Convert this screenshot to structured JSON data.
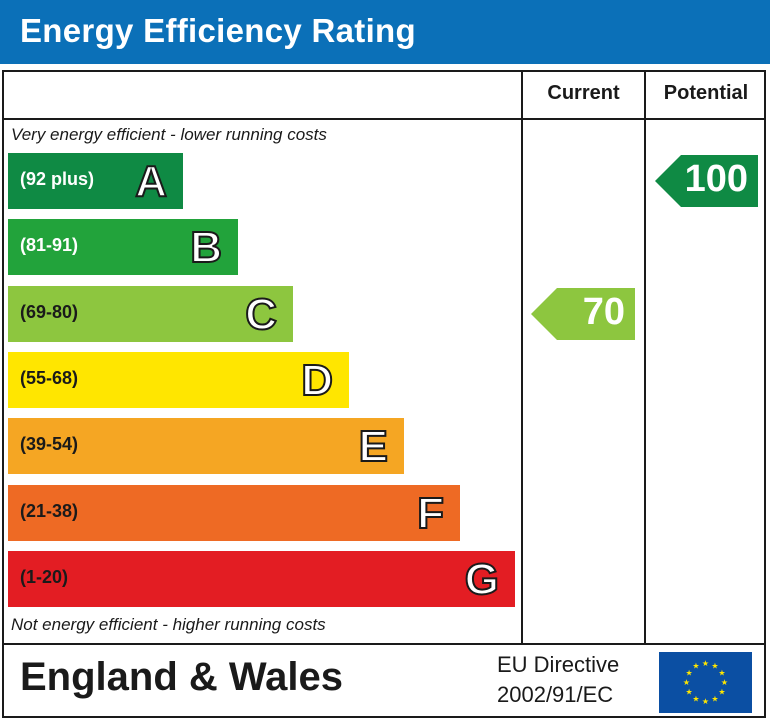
{
  "header": {
    "title": "Energy Efficiency Rating"
  },
  "columns": {
    "current": "Current",
    "potential": "Potential"
  },
  "notes": {
    "top": "Very energy efficient - lower running costs",
    "bottom": "Not energy efficient - higher running costs"
  },
  "chart_data": {
    "type": "bar",
    "title": "Energy Efficiency Rating",
    "categories": [
      "A",
      "B",
      "C",
      "D",
      "E",
      "F",
      "G"
    ],
    "bands": [
      {
        "letter": "A",
        "range": "(92 plus)",
        "color": "#0f8a44",
        "range_text_color": "#ffffff"
      },
      {
        "letter": "B",
        "range": "(81-91)",
        "color": "#22a33b",
        "range_text_color": "#ffffff"
      },
      {
        "letter": "C",
        "range": "(69-80)",
        "color": "#8dc63f",
        "range_text_color": "#1a1a1a"
      },
      {
        "letter": "D",
        "range": "(55-68)",
        "color": "#ffe600",
        "range_text_color": "#1a1a1a"
      },
      {
        "letter": "E",
        "range": "(39-54)",
        "color": "#f5a623",
        "range_text_color": "#1a1a1a"
      },
      {
        "letter": "F",
        "range": "(21-38)",
        "color": "#ee6a24",
        "range_text_color": "#1a1a1a"
      },
      {
        "letter": "G",
        "range": "(1-20)",
        "color": "#e31d23",
        "range_text_color": "#1a1a1a"
      }
    ],
    "current": {
      "value": 70,
      "band": "C",
      "color": "#8dc63f"
    },
    "potential": {
      "value": 100,
      "band": "A",
      "color": "#0f8a44"
    }
  },
  "footer": {
    "country": "England & Wales",
    "directive_line1": "EU Directive",
    "directive_line2": "2002/91/EC",
    "flag_color": "#0b4fa3",
    "star_color": "#ffe600"
  }
}
